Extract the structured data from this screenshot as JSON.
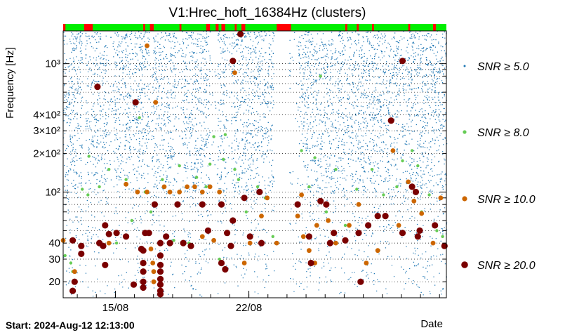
{
  "chart_data": {
    "type": "scatter",
    "title": "V1:Hrec_hoft_16384Hz (clusters)",
    "ylabel": "Frequency [Hz]",
    "xlabel": "Date",
    "start_label": "Start: 2024-Aug-12 12:13:00",
    "x_axis": {
      "unit": "days since start",
      "range": [
        0,
        20.1
      ],
      "ticks": [
        {
          "value": 2.74,
          "label": "15/08"
        },
        {
          "value": 9.74,
          "label": "22/08"
        }
      ]
    },
    "y_axis": {
      "scale": "log",
      "range": [
        15,
        1800
      ],
      "ticks": [
        {
          "value": 20,
          "label": "20"
        },
        {
          "value": 30,
          "label": "30"
        },
        {
          "value": 40,
          "label": "40"
        },
        {
          "value": 100,
          "label": "10²"
        },
        {
          "value": 200,
          "label": "2×10²"
        },
        {
          "value": 300,
          "label": "3×10²"
        },
        {
          "value": 400,
          "label": "4×10²"
        },
        {
          "value": 1000,
          "label": "10³"
        }
      ],
      "grid": [
        20,
        30,
        40,
        50,
        60,
        70,
        80,
        90,
        100,
        200,
        300,
        400,
        500,
        600,
        700,
        800,
        900,
        1000
      ]
    },
    "legend": {
      "placement": "right",
      "entries": [
        {
          "label": "SNR ≥ 5.0",
          "color": "#1f77b4"
        },
        {
          "label": "SNR ≥ 8.0",
          "color": "#66cc55"
        },
        {
          "label": "SNR ≥ 10.0",
          "color": "#cc6600"
        },
        {
          "label": "SNR ≥ 20.0",
          "color": "#7a0000"
        }
      ]
    },
    "segment_bar": {
      "colors": {
        "on": "#00ee00",
        "off": "#ff0000"
      },
      "off_intervals": [
        [
          0.0,
          0.12
        ],
        [
          1.1,
          1.55
        ],
        [
          4.2,
          4.3
        ],
        [
          4.55,
          4.75
        ],
        [
          6.1,
          6.2
        ],
        [
          7.5,
          7.7
        ],
        [
          8.0,
          8.15
        ],
        [
          8.3,
          8.5
        ],
        [
          9.0,
          9.1
        ],
        [
          9.35,
          9.55
        ],
        [
          11.2,
          11.95
        ],
        [
          14.8,
          14.9
        ],
        [
          15.4,
          15.5
        ],
        [
          16.2,
          16.3
        ],
        [
          18.1,
          18.2
        ],
        [
          19.4,
          19.55
        ]
      ]
    },
    "background_density": {
      "color": "#1f77b4",
      "gaps": [
        [
          1.0,
          1.15
        ],
        [
          4.5,
          4.6
        ],
        [
          11.05,
          11.85
        ]
      ],
      "sparse_bands": [
        [
          2.3,
          2.6
        ],
        [
          5.9,
          6.2
        ],
        [
          7.7,
          8.1
        ],
        [
          8.6,
          8.8
        ],
        [
          11.9,
          12.3
        ]
      ],
      "fmax": 1800
    },
    "series": [
      {
        "name": "SNR ≥ 8.0",
        "color": "#66cc55",
        "points": [
          [
            0.1,
            32
          ],
          [
            0.4,
            28
          ],
          [
            0.5,
            24
          ],
          [
            1.0,
            105
          ],
          [
            1.3,
            95
          ],
          [
            1.35,
            190
          ],
          [
            1.9,
            110
          ],
          [
            2.4,
            150
          ],
          [
            2.8,
            40
          ],
          [
            3.3,
            125
          ],
          [
            3.6,
            60
          ],
          [
            4.0,
            380
          ],
          [
            4.3,
            100
          ],
          [
            4.6,
            70
          ],
          [
            5.2,
            125
          ],
          [
            5.8,
            42
          ],
          [
            6.1,
            160
          ],
          [
            6.6,
            40
          ],
          [
            7.0,
            130
          ],
          [
            7.5,
            110
          ],
          [
            7.7,
            165
          ],
          [
            7.9,
            270
          ],
          [
            8.2,
            30
          ],
          [
            8.4,
            180
          ],
          [
            8.8,
            38
          ],
          [
            9.0,
            150
          ],
          [
            9.2,
            125
          ],
          [
            9.6,
            70
          ],
          [
            10.2,
            110
          ],
          [
            10.6,
            90
          ],
          [
            11.0,
            45
          ],
          [
            12.5,
            210
          ],
          [
            13.2,
            185
          ],
          [
            13.8,
            70
          ],
          [
            14.3,
            150
          ],
          [
            14.8,
            55
          ],
          [
            15.4,
            105
          ],
          [
            16.2,
            150
          ],
          [
            17.5,
            110
          ],
          [
            18.3,
            210
          ],
          [
            18.8,
            70
          ],
          [
            19.2,
            95
          ],
          [
            19.6,
            50
          ],
          [
            19.9,
            45
          ],
          [
            16.8,
            95
          ],
          [
            13.5,
            800
          ],
          [
            12.9,
            110
          ],
          [
            17.8,
            175
          ],
          [
            18.6,
            160
          ],
          [
            8.5,
            280
          ]
        ]
      },
      {
        "name": "SNR ≥ 10.0",
        "color": "#cc6600",
        "points": [
          [
            0.0,
            42
          ],
          [
            0.6,
            24
          ],
          [
            2.4,
            40
          ],
          [
            3.3,
            115
          ],
          [
            3.9,
            100
          ],
          [
            4.4,
            100
          ],
          [
            4.4,
            1380
          ],
          [
            4.6,
            36
          ],
          [
            4.7,
            28
          ],
          [
            4.75,
            24
          ],
          [
            4.75,
            20
          ],
          [
            4.85,
            500
          ],
          [
            5.3,
            110
          ],
          [
            5.6,
            100
          ],
          [
            6.9,
            110
          ],
          [
            7.3,
            45
          ],
          [
            7.7,
            110
          ],
          [
            7.9,
            42
          ],
          [
            8.2,
            100
          ],
          [
            9.0,
            850
          ],
          [
            9.5,
            28
          ],
          [
            9.8,
            40
          ],
          [
            10.4,
            65
          ],
          [
            10.7,
            90
          ],
          [
            11.2,
            40
          ],
          [
            12.3,
            65
          ],
          [
            12.6,
            45
          ],
          [
            12.9,
            35
          ],
          [
            13.0,
            28
          ],
          [
            13.3,
            55
          ],
          [
            13.9,
            60
          ],
          [
            14.3,
            40
          ],
          [
            15.0,
            55
          ],
          [
            15.5,
            80
          ],
          [
            15.9,
            28
          ],
          [
            16.5,
            35
          ],
          [
            17.6,
            55
          ],
          [
            18.1,
            120
          ],
          [
            18.4,
            85
          ],
          [
            18.8,
            68
          ],
          [
            19.4,
            40
          ],
          [
            19.8,
            90
          ],
          [
            17.3,
            210
          ],
          [
            12.5,
            95
          ],
          [
            13.2,
            28
          ],
          [
            7.3,
            100
          ],
          [
            6.1,
            100
          ],
          [
            6.5,
            110
          ]
        ]
      },
      {
        "name": "SNR ≥ 20.0",
        "color": "#7a0000",
        "points": [
          [
            0.5,
            42
          ],
          [
            0.6,
            20
          ],
          [
            0.5,
            17
          ],
          [
            0.95,
            38
          ],
          [
            0.95,
            33
          ],
          [
            1.9,
            40
          ],
          [
            2.2,
            55
          ],
          [
            2.1,
            38
          ],
          [
            2.2,
            27
          ],
          [
            2.4,
            47
          ],
          [
            1.8,
            660
          ],
          [
            3.8,
            500
          ],
          [
            3.7,
            19
          ],
          [
            2.8,
            48
          ],
          [
            3.3,
            45
          ],
          [
            4.1,
            36
          ],
          [
            4.3,
            48
          ],
          [
            4.2,
            35
          ],
          [
            4.2,
            28
          ],
          [
            4.2,
            24
          ],
          [
            4.2,
            20
          ],
          [
            4.2,
            18
          ],
          [
            4.5,
            48
          ],
          [
            4.8,
            80
          ],
          [
            5.1,
            40
          ],
          [
            5.1,
            32
          ],
          [
            5.1,
            27
          ],
          [
            5.1,
            24
          ],
          [
            5.1,
            21
          ],
          [
            5.1,
            19
          ],
          [
            5.1,
            17
          ],
          [
            5.1,
            16
          ],
          [
            5.4,
            45
          ],
          [
            5.6,
            40
          ],
          [
            6.0,
            80
          ],
          [
            6.3,
            40
          ],
          [
            6.7,
            38
          ],
          [
            7.3,
            80
          ],
          [
            7.6,
            50
          ],
          [
            8.3,
            80
          ],
          [
            8.6,
            48
          ],
          [
            8.9,
            1050
          ],
          [
            9.3,
            1700
          ],
          [
            8.9,
            60
          ],
          [
            8.8,
            38
          ],
          [
            8.3,
            28
          ],
          [
            8.5,
            25
          ],
          [
            9.5,
            90
          ],
          [
            9.8,
            45
          ],
          [
            10.3,
            100
          ],
          [
            10.4,
            40
          ],
          [
            12.3,
            80
          ],
          [
            12.9,
            45
          ],
          [
            13.0,
            28
          ],
          [
            13.8,
            80
          ],
          [
            14.0,
            40
          ],
          [
            14.2,
            48
          ],
          [
            14.8,
            42
          ],
          [
            15.5,
            48
          ],
          [
            16.0,
            55
          ],
          [
            16.5,
            65
          ],
          [
            15.6,
            20
          ],
          [
            16.9,
            65
          ],
          [
            17.2,
            360
          ],
          [
            17.8,
            48
          ],
          [
            18.3,
            110
          ],
          [
            18.5,
            100
          ],
          [
            17.8,
            1050
          ],
          [
            18.7,
            50
          ],
          [
            18.6,
            45
          ],
          [
            19.5,
            55
          ],
          [
            20.0,
            38
          ],
          [
            13.5,
            85
          ]
        ]
      }
    ]
  }
}
